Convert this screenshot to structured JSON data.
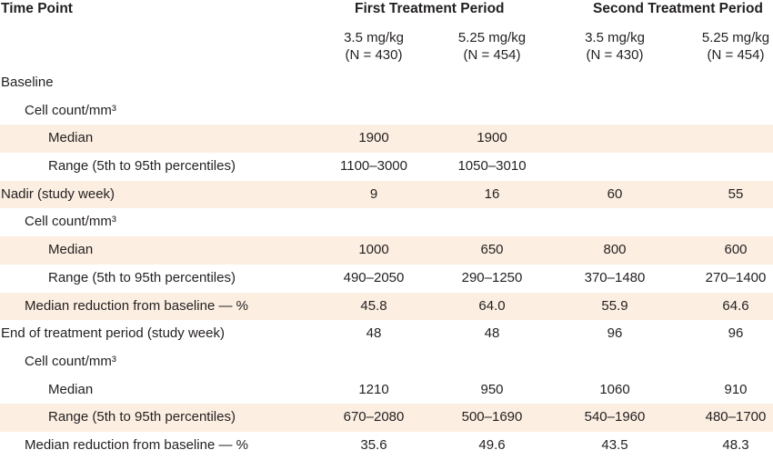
{
  "header": {
    "time_point": "Time Point",
    "first_period": "First Treatment Period",
    "second_period": "Second Treatment Period",
    "columns": [
      {
        "dose": "3.5 mg/kg",
        "n": "(N = 430)"
      },
      {
        "dose": "5.25 mg/kg",
        "n": "(N = 454)"
      },
      {
        "dose": "3.5 mg/kg",
        "n": "(N = 430)"
      },
      {
        "dose": "5.25 mg/kg",
        "n": "(N = 454)"
      }
    ]
  },
  "rows": [
    {
      "label": "Baseline",
      "values": [
        "",
        "",
        "",
        ""
      ]
    },
    {
      "label": "Cell count/mm³",
      "values": [
        "",
        "",
        "",
        ""
      ]
    },
    {
      "label": "Median",
      "values": [
        "1900",
        "1900",
        "",
        ""
      ]
    },
    {
      "label": "Range (5th to 95th percentiles)",
      "values": [
        "1100–3000",
        "1050–3010",
        "",
        ""
      ]
    },
    {
      "label": "Nadir (study week)",
      "values": [
        "9",
        "16",
        "60",
        "55"
      ]
    },
    {
      "label": "Cell count/mm³",
      "values": [
        "",
        "",
        "",
        ""
      ]
    },
    {
      "label": "Median",
      "values": [
        "1000",
        "650",
        "800",
        "600"
      ]
    },
    {
      "label": "Range (5th to 95th percentiles)",
      "values": [
        "490–2050",
        "290–1250",
        "370–1480",
        "270–1400"
      ]
    },
    {
      "label": "Median reduction from baseline — %",
      "values": [
        "45.8",
        "64.0",
        "55.9",
        "64.6"
      ]
    },
    {
      "label": "End of treatment period (study week)",
      "values": [
        "48",
        "48",
        "96",
        "96"
      ]
    },
    {
      "label": "Cell count/mm³",
      "values": [
        "",
        "",
        "",
        ""
      ]
    },
    {
      "label": "Median",
      "values": [
        "1210",
        "950",
        "1060",
        "910"
      ]
    },
    {
      "label": "Range (5th to 95th percentiles)",
      "values": [
        "670–2080",
        "500–1690",
        "540–1960",
        "480–1700"
      ]
    },
    {
      "label": "Median reduction from baseline — %",
      "values": [
        "35.6",
        "49.6",
        "43.5",
        "48.3"
      ]
    }
  ],
  "colors": {
    "shade": "#fcefe2",
    "text": "#231f20"
  }
}
